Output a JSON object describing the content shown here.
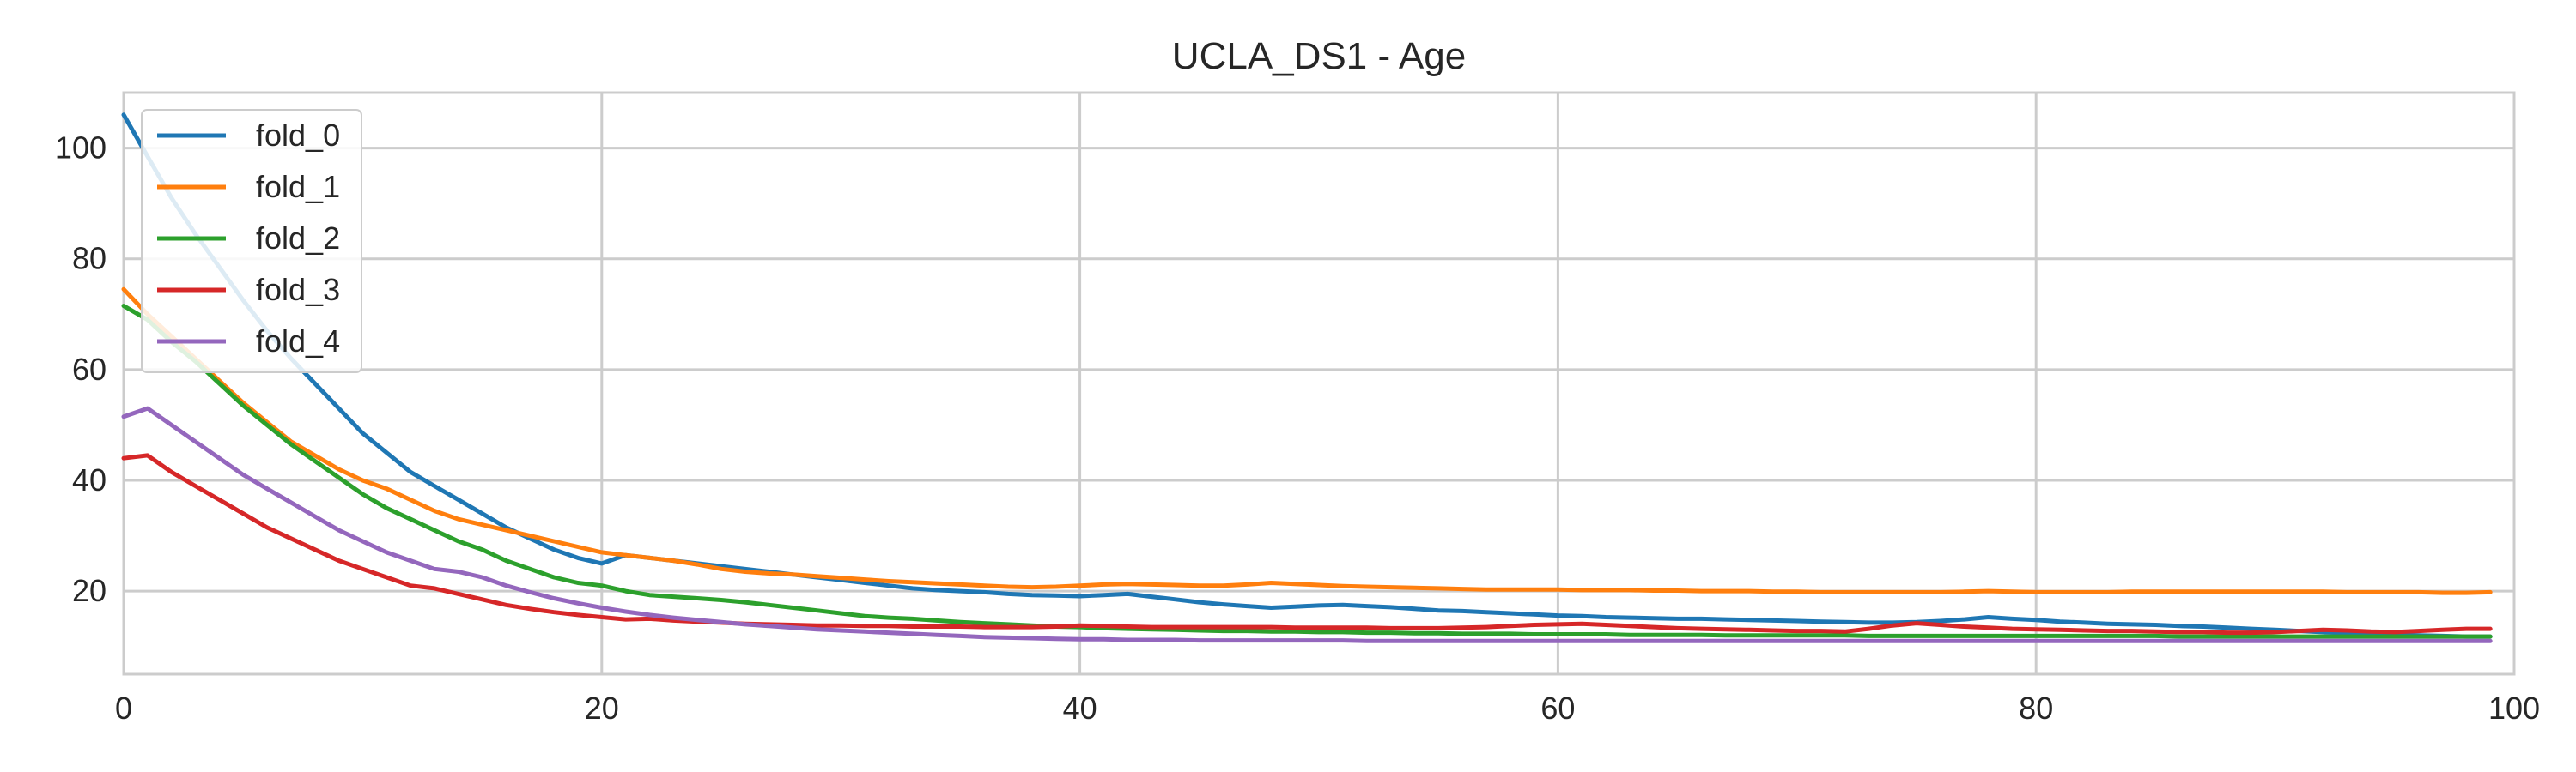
{
  "chart_data": {
    "type": "line",
    "title": "UCLA_DS1 - Age",
    "xlabel": "",
    "ylabel": "",
    "xlim": [
      0,
      100
    ],
    "ylim": [
      5,
      110
    ],
    "xticks": [
      0,
      20,
      40,
      60,
      80,
      100
    ],
    "yticks": [
      20,
      40,
      60,
      80,
      100
    ],
    "grid": true,
    "legend_position": "top-left",
    "x": [
      0,
      1,
      2,
      3,
      4,
      5,
      6,
      7,
      8,
      9,
      10,
      11,
      12,
      13,
      14,
      15,
      16,
      17,
      18,
      19,
      20,
      21,
      22,
      23,
      24,
      25,
      26,
      27,
      28,
      29,
      30,
      31,
      32,
      33,
      34,
      35,
      36,
      37,
      38,
      39,
      40,
      41,
      42,
      43,
      44,
      45,
      46,
      47,
      48,
      49,
      50,
      51,
      52,
      53,
      54,
      55,
      56,
      57,
      58,
      59,
      60,
      61,
      62,
      63,
      64,
      65,
      66,
      67,
      68,
      69,
      70,
      71,
      72,
      73,
      74,
      75,
      76,
      77,
      78,
      79,
      80,
      81,
      82,
      83,
      84,
      85,
      86,
      87,
      88,
      89,
      90,
      91,
      92,
      93,
      94,
      95,
      96,
      97,
      98,
      99
    ],
    "series": [
      {
        "name": "fold_0",
        "color": "#1f77b4",
        "values": [
          106.0,
          98.5,
          91.0,
          84.5,
          78.5,
          72.5,
          67.0,
          62.0,
          57.5,
          53.0,
          48.5,
          45.0,
          41.5,
          39.0,
          36.5,
          34.0,
          31.5,
          29.5,
          27.5,
          26.0,
          25.0,
          26.5,
          26.0,
          25.5,
          25.0,
          24.5,
          24.0,
          23.5,
          23.0,
          22.5,
          22.0,
          21.5,
          21.0,
          20.5,
          20.2,
          20.0,
          19.8,
          19.5,
          19.3,
          19.2,
          19.1,
          19.3,
          19.5,
          19.0,
          18.5,
          18.0,
          17.6,
          17.3,
          17.0,
          17.2,
          17.4,
          17.5,
          17.3,
          17.1,
          16.8,
          16.5,
          16.4,
          16.2,
          16.0,
          15.8,
          15.6,
          15.5,
          15.3,
          15.2,
          15.1,
          15.0,
          15.0,
          14.9,
          14.8,
          14.7,
          14.6,
          14.5,
          14.4,
          14.3,
          14.3,
          14.4,
          14.6,
          14.9,
          15.3,
          15.0,
          14.8,
          14.5,
          14.3,
          14.1,
          14.0,
          13.9,
          13.7,
          13.6,
          13.4,
          13.2,
          13.0,
          12.8,
          12.6,
          12.4,
          12.2,
          12.1,
          12.0,
          11.9,
          11.8,
          11.8
        ]
      },
      {
        "name": "fold_1",
        "color": "#ff7f0e",
        "values": [
          74.5,
          70.0,
          66.0,
          62.0,
          58.0,
          54.0,
          50.5,
          47.0,
          44.5,
          42.0,
          40.0,
          38.5,
          36.5,
          34.5,
          33.0,
          32.0,
          31.0,
          30.0,
          29.0,
          28.0,
          27.0,
          26.5,
          26.0,
          25.5,
          24.8,
          24.0,
          23.5,
          23.2,
          23.0,
          22.7,
          22.4,
          22.1,
          21.8,
          21.6,
          21.4,
          21.2,
          21.0,
          20.8,
          20.7,
          20.8,
          21.0,
          21.2,
          21.3,
          21.2,
          21.1,
          21.0,
          21.0,
          21.2,
          21.5,
          21.3,
          21.1,
          20.9,
          20.8,
          20.7,
          20.6,
          20.5,
          20.4,
          20.3,
          20.3,
          20.3,
          20.3,
          20.2,
          20.2,
          20.2,
          20.1,
          20.1,
          20.0,
          20.0,
          20.0,
          19.9,
          19.9,
          19.8,
          19.8,
          19.8,
          19.8,
          19.8,
          19.8,
          19.9,
          20.0,
          19.9,
          19.8,
          19.8,
          19.8,
          19.8,
          19.9,
          19.9,
          19.9,
          19.9,
          19.9,
          19.9,
          19.9,
          19.9,
          19.9,
          19.8,
          19.8,
          19.8,
          19.8,
          19.7,
          19.7,
          19.8
        ]
      },
      {
        "name": "fold_2",
        "color": "#2ca02c",
        "values": [
          71.5,
          69.0,
          65.0,
          61.5,
          57.5,
          53.5,
          50.0,
          46.5,
          43.5,
          40.5,
          37.5,
          35.0,
          33.0,
          31.0,
          29.0,
          27.5,
          25.5,
          24.0,
          22.5,
          21.5,
          21.0,
          20.0,
          19.3,
          19.0,
          18.7,
          18.4,
          18.0,
          17.5,
          17.0,
          16.5,
          16.0,
          15.5,
          15.2,
          15.0,
          14.7,
          14.4,
          14.2,
          14.0,
          13.8,
          13.6,
          13.5,
          13.3,
          13.2,
          13.1,
          13.0,
          12.9,
          12.8,
          12.8,
          12.7,
          12.7,
          12.6,
          12.6,
          12.5,
          12.5,
          12.4,
          12.4,
          12.3,
          12.3,
          12.3,
          12.2,
          12.2,
          12.2,
          12.2,
          12.1,
          12.1,
          12.1,
          12.1,
          12.0,
          12.0,
          12.0,
          12.0,
          12.0,
          12.0,
          11.9,
          11.9,
          11.9,
          11.9,
          11.9,
          11.9,
          11.9,
          11.9,
          11.9,
          11.9,
          11.9,
          11.9,
          11.9,
          11.8,
          11.8,
          11.8,
          11.8,
          11.8,
          11.8,
          11.8,
          11.8,
          11.8,
          11.8,
          11.8,
          11.8,
          11.8,
          11.8
        ]
      },
      {
        "name": "fold_3",
        "color": "#d62728",
        "values": [
          44.0,
          44.5,
          41.5,
          39.0,
          36.5,
          34.0,
          31.5,
          29.5,
          27.5,
          25.5,
          24.0,
          22.5,
          21.0,
          20.5,
          19.5,
          18.5,
          17.5,
          16.8,
          16.2,
          15.7,
          15.3,
          14.9,
          15.0,
          14.7,
          14.5,
          14.3,
          14.1,
          14.0,
          13.9,
          13.8,
          13.8,
          13.7,
          13.7,
          13.6,
          13.6,
          13.6,
          13.5,
          13.5,
          13.5,
          13.6,
          13.8,
          13.7,
          13.6,
          13.5,
          13.5,
          13.5,
          13.5,
          13.5,
          13.5,
          13.4,
          13.4,
          13.4,
          13.4,
          13.3,
          13.3,
          13.3,
          13.4,
          13.5,
          13.7,
          13.9,
          14.0,
          14.1,
          13.9,
          13.7,
          13.5,
          13.3,
          13.2,
          13.1,
          13.0,
          12.9,
          12.8,
          12.8,
          12.7,
          13.2,
          13.8,
          14.2,
          13.9,
          13.6,
          13.4,
          13.2,
          13.1,
          13.0,
          12.9,
          12.8,
          12.8,
          12.7,
          12.6,
          12.6,
          12.5,
          12.5,
          12.6,
          12.8,
          13.0,
          12.9,
          12.7,
          12.6,
          12.8,
          13.0,
          13.2,
          13.2
        ]
      },
      {
        "name": "fold_4",
        "color": "#9467bd",
        "values": [
          51.5,
          53.0,
          50.0,
          47.0,
          44.0,
          41.0,
          38.5,
          36.0,
          33.5,
          31.0,
          29.0,
          27.0,
          25.5,
          24.0,
          23.5,
          22.5,
          21.0,
          19.8,
          18.7,
          17.8,
          17.0,
          16.3,
          15.7,
          15.2,
          14.8,
          14.4,
          14.0,
          13.7,
          13.4,
          13.1,
          12.9,
          12.7,
          12.5,
          12.3,
          12.1,
          11.9,
          11.7,
          11.6,
          11.5,
          11.4,
          11.3,
          11.3,
          11.2,
          11.2,
          11.2,
          11.1,
          11.1,
          11.1,
          11.1,
          11.1,
          11.1,
          11.1,
          11.0,
          11.0,
          11.0,
          11.0,
          11.0,
          11.0,
          11.0,
          11.0,
          11.0,
          11.0,
          11.0,
          11.0,
          11.0,
          11.0,
          11.0,
          11.0,
          11.0,
          11.0,
          11.0,
          11.0,
          11.0,
          11.0,
          11.0,
          11.0,
          11.0,
          11.0,
          11.0,
          11.0,
          11.0,
          11.0,
          11.0,
          11.0,
          11.0,
          11.0,
          11.0,
          11.0,
          11.0,
          11.0,
          11.0,
          11.0,
          11.0,
          11.0,
          11.0,
          11.0,
          11.0,
          11.0,
          11.0,
          11.0
        ]
      }
    ]
  }
}
